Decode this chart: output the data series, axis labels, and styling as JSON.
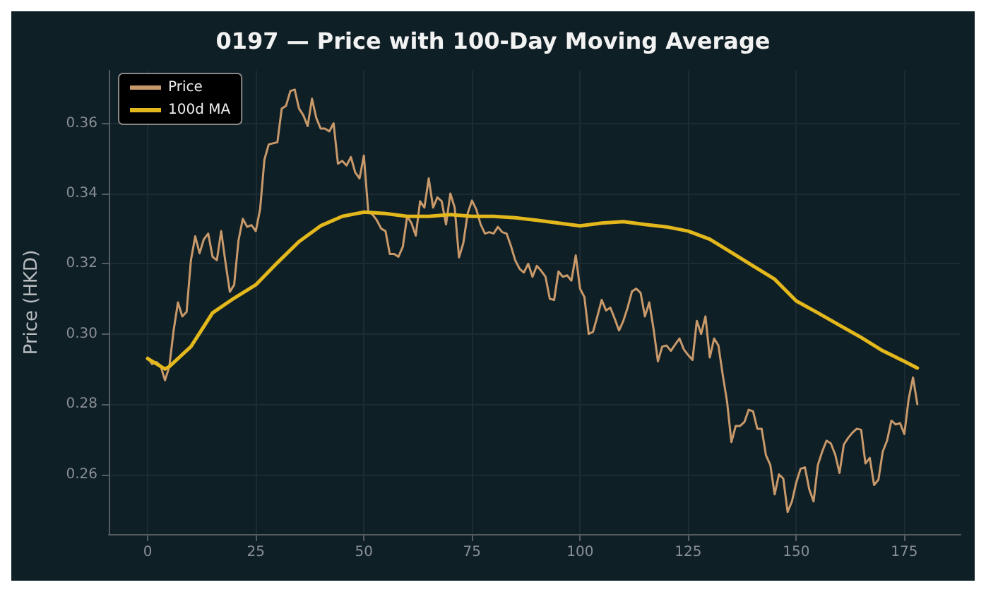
{
  "chart_data": {
    "type": "line",
    "title": "0197 — Price with 100-Day Moving Average",
    "ylabel": "Price (HKD)",
    "xlim": [
      -9,
      188
    ],
    "xticks": [
      0,
      25,
      50,
      75,
      100,
      125,
      150,
      175
    ],
    "ylim": [
      0.243,
      0.375
    ],
    "yticks": [
      0.26,
      0.28,
      {
        "value": 0.3,
        "label": "0.30"
      },
      0.32,
      0.34,
      0.36
    ],
    "grid": true,
    "legend": "top left",
    "marker": "none",
    "line_style": "solid",
    "series": [
      {
        "name": "Price",
        "color": "#c8996a",
        "x": [
          0,
          1,
          2,
          3,
          4,
          5,
          6,
          7,
          8,
          9,
          10,
          11,
          12,
          13,
          14,
          15,
          16,
          17,
          18,
          19,
          20,
          21,
          22,
          23,
          24,
          25,
          26,
          27,
          28,
          29,
          30,
          31,
          32,
          33,
          34,
          35,
          36,
          37,
          38,
          39,
          40,
          41,
          42,
          43,
          44,
          45,
          46,
          47,
          48,
          49,
          50,
          51,
          52,
          53,
          54,
          55,
          56,
          57,
          58,
          59,
          60,
          61,
          62,
          63,
          64,
          65,
          66,
          67,
          68,
          69,
          70,
          71,
          72,
          73,
          74,
          75,
          76,
          77,
          78,
          79,
          80,
          81,
          82,
          83,
          84,
          85,
          86,
          87,
          88,
          89,
          90,
          91,
          92,
          93,
          94,
          95,
          96,
          97,
          98,
          99,
          100,
          101,
          102,
          103,
          104,
          105,
          106,
          107,
          108,
          109,
          110,
          111,
          112,
          113,
          114,
          115,
          116,
          117,
          118,
          119,
          120,
          121,
          122,
          123,
          124,
          125,
          126,
          127,
          128,
          129,
          130,
          131,
          132,
          133,
          134,
          135,
          136,
          137,
          138,
          139,
          140,
          141,
          142,
          143,
          144,
          145,
          146,
          147,
          148,
          149,
          150,
          151,
          152,
          153,
          154,
          155,
          156,
          157,
          158,
          159,
          160,
          161,
          162,
          163,
          164,
          165,
          166,
          167,
          168,
          169,
          170,
          171,
          172,
          173,
          174,
          175,
          176,
          177,
          178
        ],
        "values": [
          0.2933,
          0.2914,
          0.292,
          0.2909,
          0.2868,
          0.2907,
          0.301,
          0.309,
          0.305,
          0.3063,
          0.321,
          0.3278,
          0.323,
          0.327,
          0.3286,
          0.322,
          0.321,
          0.3293,
          0.3203,
          0.312,
          0.314,
          0.3266,
          0.3328,
          0.3305,
          0.331,
          0.3293,
          0.3355,
          0.3497,
          0.354,
          0.3543,
          0.3546,
          0.3642,
          0.365,
          0.3692,
          0.3696,
          0.3642,
          0.3623,
          0.3592,
          0.367,
          0.3615,
          0.3585,
          0.3585,
          0.3577,
          0.36,
          0.3485,
          0.3493,
          0.348,
          0.3504,
          0.346,
          0.3443,
          0.3508,
          0.335,
          0.334,
          0.3324,
          0.33,
          0.3293,
          0.3228,
          0.3228,
          0.322,
          0.3248,
          0.3335,
          0.3316,
          0.328,
          0.3378,
          0.336,
          0.3443,
          0.336,
          0.3389,
          0.3378,
          0.3312,
          0.34,
          0.336,
          0.3218,
          0.3259,
          0.3343,
          0.338,
          0.3355,
          0.3312,
          0.3286,
          0.329,
          0.3286,
          0.3305,
          0.329,
          0.3286,
          0.3251,
          0.321,
          0.3186,
          0.3175,
          0.32,
          0.3163,
          0.3194,
          0.318,
          0.3163,
          0.31,
          0.3097,
          0.3178,
          0.3163,
          0.3167,
          0.3152,
          0.3224,
          0.3129,
          0.3105,
          0.3,
          0.3006,
          0.305,
          0.3097,
          0.3067,
          0.3075,
          0.3044,
          0.301,
          0.3037,
          0.3075,
          0.3121,
          0.3129,
          0.3117,
          0.305,
          0.309,
          0.3014,
          0.2922,
          0.2964,
          0.2967,
          0.2952,
          0.297,
          0.2987,
          0.2956,
          0.294,
          0.2926,
          0.3037,
          0.3,
          0.305,
          0.2933,
          0.2987,
          0.2967,
          0.2883,
          0.2807,
          0.2692,
          0.2738,
          0.2738,
          0.2749,
          0.2784,
          0.278,
          0.273,
          0.273,
          0.2654,
          0.2627,
          0.2543,
          0.26,
          0.2588,
          0.2493,
          0.2523,
          0.2577,
          0.2616,
          0.262,
          0.2558,
          0.2523,
          0.2627,
          0.2665,
          0.2696,
          0.2688,
          0.2657,
          0.2604,
          0.2685,
          0.2704,
          0.2719,
          0.273,
          0.2727,
          0.2631,
          0.2647,
          0.257,
          0.2585,
          0.2665,
          0.2696,
          0.2753,
          0.2742,
          0.2746,
          0.2715,
          0.2815,
          0.2876,
          0.28
        ]
      },
      {
        "name": "100d MA",
        "color": "#e3b81c",
        "x": [
          0,
          2,
          4,
          5,
          10,
          15,
          20,
          25,
          30,
          35,
          40,
          45,
          50,
          55,
          60,
          65,
          70,
          75,
          80,
          85,
          90,
          95,
          100,
          105,
          110,
          115,
          120,
          125,
          130,
          135,
          140,
          145,
          150,
          155,
          160,
          165,
          170,
          175,
          178
        ],
        "values": [
          0.293,
          0.2915,
          0.29,
          0.2907,
          0.2964,
          0.306,
          0.3102,
          0.314,
          0.3203,
          0.3263,
          0.3308,
          0.3335,
          0.3347,
          0.3343,
          0.3335,
          0.3335,
          0.334,
          0.3335,
          0.3335,
          0.3331,
          0.3324,
          0.3316,
          0.3308,
          0.3316,
          0.332,
          0.3312,
          0.3305,
          0.3293,
          0.327,
          0.3232,
          0.3194,
          0.3156,
          0.3094,
          0.306,
          0.3025,
          0.299,
          0.2952,
          0.2922,
          0.2903
        ]
      }
    ]
  }
}
